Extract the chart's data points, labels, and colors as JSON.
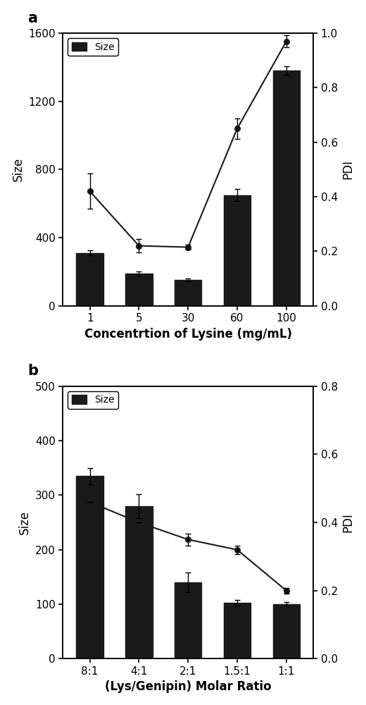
{
  "panel_a": {
    "categories": [
      "1",
      "5",
      "30",
      "60",
      "100"
    ],
    "bar_values": [
      310,
      190,
      150,
      650,
      1380
    ],
    "bar_errors": [
      15,
      12,
      8,
      35,
      25
    ],
    "pdi_values": [
      0.42,
      0.22,
      0.215,
      0.65,
      0.97
    ],
    "pdi_errors": [
      0.065,
      0.025,
      0.008,
      0.038,
      0.022
    ],
    "bar_color": "#1a1a1a",
    "line_color": "#1a1a1a",
    "xlabel": "Concentrtion of Lysine (mg/mL)",
    "ylabel_left": "Size",
    "ylabel_right": "PDI",
    "ylim_left": [
      0,
      1600
    ],
    "ylim_right": [
      0.0,
      1.0
    ],
    "yticks_left": [
      0,
      400,
      800,
      1200,
      1600
    ],
    "yticks_right": [
      0.0,
      0.2,
      0.4,
      0.6,
      0.8,
      1.0
    ],
    "legend_label": "Size",
    "panel_label": "a"
  },
  "panel_b": {
    "categories": [
      "8:1",
      "4:1",
      "2:1",
      "1.5:1",
      "1:1"
    ],
    "bar_values": [
      335,
      280,
      140,
      103,
      100
    ],
    "bar_errors": [
      15,
      22,
      18,
      5,
      4
    ],
    "pdi_values": [
      0.46,
      0.4,
      0.35,
      0.32,
      0.2
    ],
    "pdi_errors": [
      0.0,
      0.0,
      0.018,
      0.012,
      0.008
    ],
    "bar_color": "#1a1a1a",
    "line_color": "#1a1a1a",
    "xlabel": "(Lys/Genipin) Molar Ratio",
    "ylabel_left": "Size",
    "ylabel_right": "PDI",
    "ylim_left": [
      0,
      500
    ],
    "ylim_right": [
      0.0,
      0.8
    ],
    "yticks_left": [
      0,
      100,
      200,
      300,
      400,
      500
    ],
    "yticks_right": [
      0.0,
      0.2,
      0.4,
      0.6,
      0.8
    ],
    "legend_label": "Size",
    "panel_label": "b"
  },
  "background_color": "#ffffff",
  "bar_width": 0.55
}
